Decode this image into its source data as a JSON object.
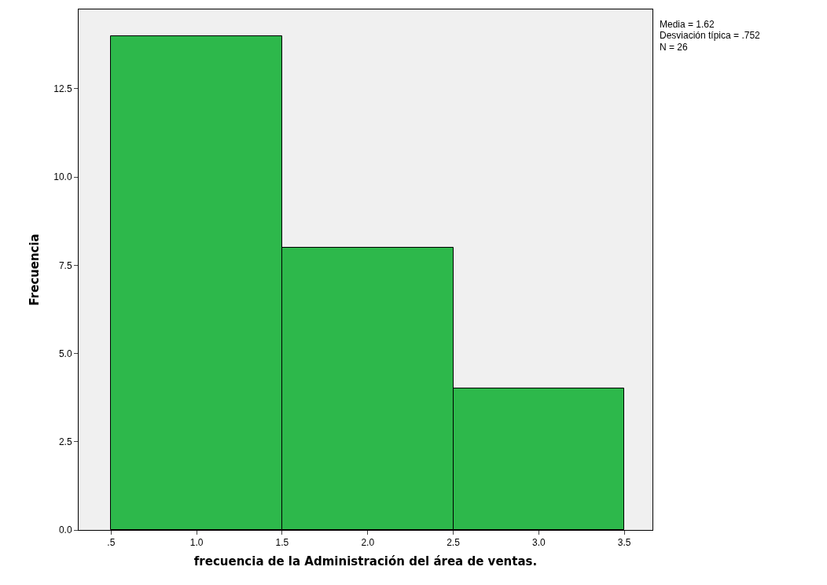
{
  "chart_data": {
    "type": "histogram",
    "xlabel": "frecuencia de la Administración del área de ventas.",
    "ylabel": "Frecuencia",
    "bins": [
      0.5,
      1.5,
      2.5,
      3.5
    ],
    "values": [
      14,
      8,
      4
    ],
    "color": "#2db84b",
    "xlim": [
      0.31,
      3.665
    ],
    "xticks": [
      {
        "value": 0.5,
        "label": ".5"
      },
      {
        "value": 1,
        "label": "1.0"
      },
      {
        "value": 1.5,
        "label": "1.5"
      },
      {
        "value": 2,
        "label": "2.0"
      },
      {
        "value": 2.5,
        "label": "2.5"
      },
      {
        "value": 3,
        "label": "3.0"
      },
      {
        "value": 3.5,
        "label": "3.5"
      }
    ],
    "ylim": [
      0,
      14.75
    ],
    "yticks": [
      {
        "value": 0,
        "label": "0.0"
      },
      {
        "value": 2.5,
        "label": "2.5"
      },
      {
        "value": 5,
        "label": "5.0"
      },
      {
        "value": 7.5,
        "label": "7.5"
      },
      {
        "value": 10,
        "label": "10.0"
      },
      {
        "value": 12.5,
        "label": "12.5"
      }
    ],
    "grid": false,
    "legend": false,
    "annotations": [
      "Media = 1.62",
      "Desviación típica = .752",
      "N = 26"
    ]
  }
}
